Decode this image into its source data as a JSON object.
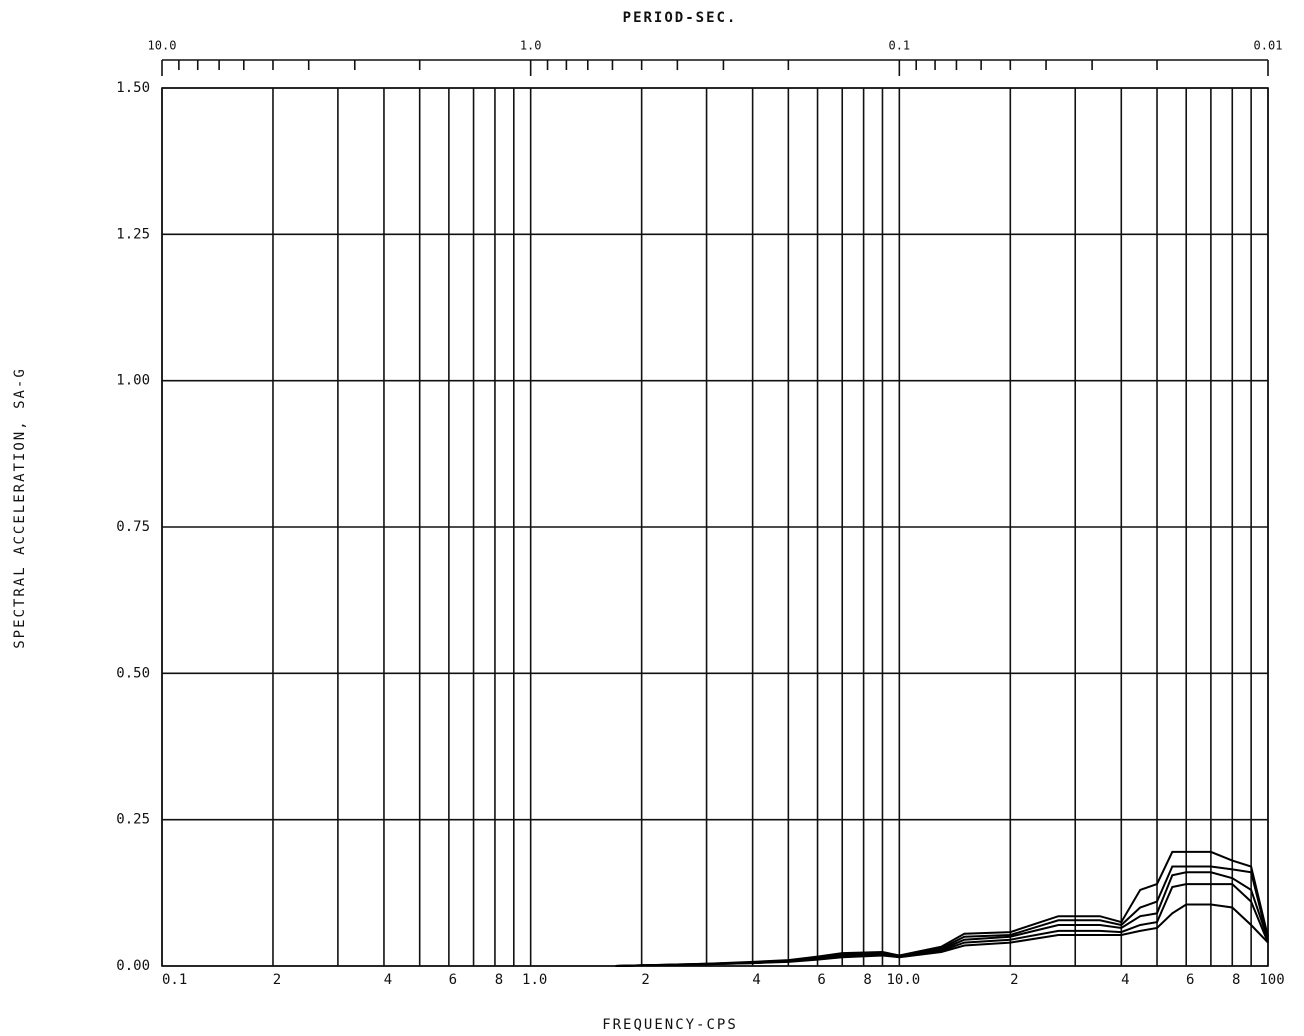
{
  "chart_data": {
    "type": "line",
    "title": "PERIOD-SEC.",
    "xlabel": "FREQUENCY-CPS",
    "ylabel": "SPECTRAL ACCELERATION, SA-G",
    "xscale": "log",
    "xlim": [
      0.1,
      100
    ],
    "ylim": [
      0,
      1.5
    ],
    "grid": true,
    "xticks": [
      {
        "value": 0.1,
        "label": "0.1"
      },
      {
        "value": 0.2,
        "label": "2"
      },
      {
        "value": 0.4,
        "label": "4"
      },
      {
        "value": 0.6,
        "label": "6"
      },
      {
        "value": 0.8,
        "label": "8"
      },
      {
        "value": 1,
        "label": "1.0"
      },
      2,
      4,
      6,
      8,
      {
        "value": 10,
        "label": "10.0"
      },
      {
        "value": 20,
        "label": "2"
      },
      {
        "value": 40,
        "label": "4"
      },
      {
        "value": 60,
        "label": "6"
      },
      {
        "value": 80,
        "label": "8"
      },
      100
    ],
    "minor_xticks": [
      0.3,
      0.5,
      0.7,
      0.9,
      3,
      5,
      7,
      9,
      30,
      50,
      70,
      90
    ],
    "yticks": [
      {
        "value": 0,
        "label": "0.00"
      },
      {
        "value": 0.25,
        "label": "0.25"
      },
      {
        "value": 0.5,
        "label": "0.50"
      },
      {
        "value": 0.75,
        "label": "0.75"
      },
      {
        "value": 1,
        "label": "1.00"
      },
      {
        "value": 1.25,
        "label": "1.25"
      },
      {
        "value": 1.5,
        "label": "1.50"
      }
    ],
    "top_ticks": [
      {
        "value": 10,
        "label": "10.0"
      },
      {
        "value": 1,
        "label": "1.0"
      },
      {
        "value": 0.1,
        "label": "0.1"
      },
      {
        "value": 0.01,
        "label": "0.01"
      }
    ],
    "top_minor_ticks": [
      9,
      8,
      7,
      6,
      5,
      4,
      3,
      2,
      0.9,
      0.8,
      0.7,
      0.6,
      0.5,
      0.4,
      0.3,
      0.2,
      0.09,
      0.08,
      0.07,
      0.06,
      0.05,
      0.04,
      0.03,
      0.02
    ],
    "x": [
      1.7,
      2,
      3,
      4,
      5,
      6,
      7,
      9,
      10,
      13,
      15,
      20,
      27,
      35,
      40,
      45,
      50,
      55,
      60,
      70,
      80,
      90,
      100
    ],
    "series": [
      {
        "color": "#000000",
        "values": [
          0,
          0.001,
          0.004,
          0.007,
          0.01,
          0.016,
          0.022,
          0.024,
          0.018,
          0.033,
          0.055,
          0.058,
          0.085,
          0.085,
          0.075,
          0.13,
          0.14,
          0.195,
          0.195,
          0.195,
          0.18,
          0.17,
          0.05
        ]
      },
      {
        "color": "#000000",
        "values": [
          0,
          0.001,
          0.004,
          0.006,
          0.009,
          0.014,
          0.02,
          0.022,
          0.017,
          0.03,
          0.05,
          0.053,
          0.078,
          0.078,
          0.07,
          0.1,
          0.11,
          0.17,
          0.17,
          0.17,
          0.165,
          0.16,
          0.045
        ]
      },
      {
        "color": "#000000",
        "values": [
          0,
          0.001,
          0.003,
          0.006,
          0.008,
          0.013,
          0.018,
          0.021,
          0.017,
          0.028,
          0.045,
          0.05,
          0.07,
          0.07,
          0.065,
          0.085,
          0.09,
          0.155,
          0.16,
          0.16,
          0.15,
          0.13,
          0.045
        ]
      },
      {
        "color": "#000000",
        "values": [
          0,
          0.001,
          0.003,
          0.005,
          0.008,
          0.012,
          0.017,
          0.02,
          0.016,
          0.026,
          0.04,
          0.045,
          0.06,
          0.06,
          0.058,
          0.07,
          0.075,
          0.135,
          0.14,
          0.14,
          0.14,
          0.11,
          0.04
        ]
      },
      {
        "color": "#000000",
        "values": [
          0,
          0.001,
          0.003,
          0.005,
          0.007,
          0.011,
          0.015,
          0.018,
          0.015,
          0.024,
          0.035,
          0.04,
          0.053,
          0.053,
          0.053,
          0.06,
          0.065,
          0.09,
          0.105,
          0.105,
          0.1,
          0.07,
          0.04
        ]
      }
    ]
  }
}
